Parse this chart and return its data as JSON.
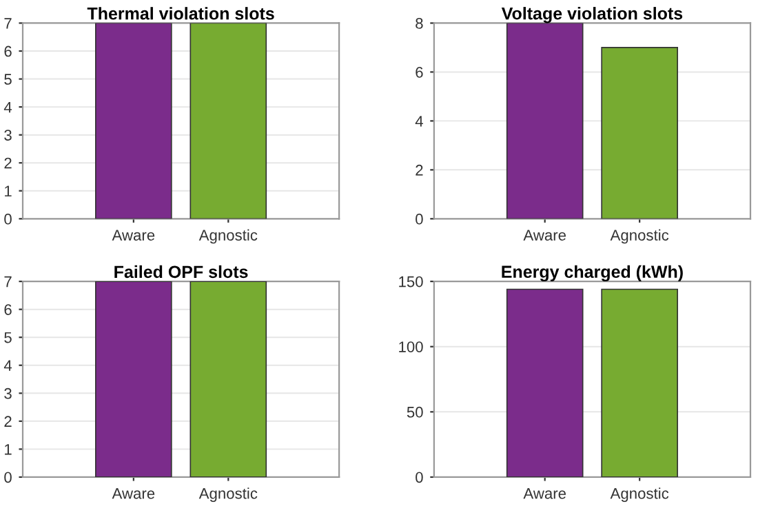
{
  "chart_data": [
    {
      "type": "bar",
      "title": "Thermal violation slots",
      "categories": [
        "Aware",
        "Agnostic"
      ],
      "values": [
        7,
        7
      ],
      "colors": [
        "#7b2c8b",
        "#77ab31"
      ],
      "ylim": [
        0,
        7
      ],
      "yticks": [
        0,
        1,
        2,
        3,
        4,
        5,
        6,
        7
      ],
      "grid": "y"
    },
    {
      "type": "bar",
      "title": "Voltage violation slots",
      "categories": [
        "Aware",
        "Agnostic"
      ],
      "values": [
        8,
        7
      ],
      "colors": [
        "#7b2c8b",
        "#77ab31"
      ],
      "ylim": [
        0,
        8
      ],
      "yticks": [
        0,
        2,
        4,
        6,
        8
      ],
      "grid": "y"
    },
    {
      "type": "bar",
      "title": "Failed OPF slots",
      "categories": [
        "Aware",
        "Agnostic"
      ],
      "values": [
        7,
        7
      ],
      "colors": [
        "#7b2c8b",
        "#77ab31"
      ],
      "ylim": [
        0,
        7
      ],
      "yticks": [
        0,
        1,
        2,
        3,
        4,
        5,
        6,
        7
      ],
      "grid": "y"
    },
    {
      "type": "bar",
      "title": "Energy charged (kWh)",
      "categories": [
        "Aware",
        "Agnostic"
      ],
      "values": [
        144,
        144
      ],
      "colors": [
        "#7b2c8b",
        "#77ab31"
      ],
      "ylim": [
        0,
        150
      ],
      "yticks": [
        0,
        50,
        100,
        150
      ],
      "grid": "y"
    }
  ]
}
